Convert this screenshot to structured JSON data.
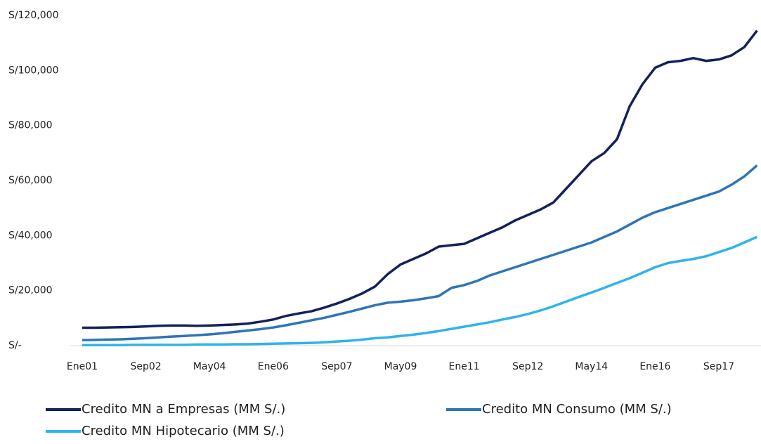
{
  "chart_data": {
    "type": "line",
    "categories": [
      "Ene01",
      null,
      null,
      null,
      null,
      "Sep02",
      null,
      null,
      null,
      null,
      "May04",
      null,
      null,
      null,
      null,
      "Ene06",
      null,
      null,
      null,
      null,
      "Sep07",
      null,
      null,
      null,
      null,
      "May09",
      null,
      null,
      null,
      null,
      "Ene11",
      null,
      null,
      null,
      null,
      "Sep12",
      null,
      null,
      null,
      null,
      "May14",
      null,
      null,
      null,
      null,
      "Ene16",
      null,
      null,
      null,
      null,
      "Sep17",
      null,
      null,
      null
    ],
    "series": [
      {
        "name": "Credito MN a Empresas (MM S/.)",
        "color": "#14215a",
        "values": [
          6500,
          6500,
          6600,
          6700,
          6800,
          7000,
          7200,
          7300,
          7300,
          7200,
          7300,
          7500,
          7700,
          8000,
          8700,
          9500,
          10800,
          11700,
          12500,
          13800,
          15300,
          17000,
          19000,
          21500,
          26000,
          29500,
          31500,
          33500,
          36000,
          36500,
          37000,
          39000,
          41000,
          43000,
          45500,
          47500,
          49500,
          52000,
          57000,
          62000,
          67000,
          70000,
          75000,
          87000,
          95000,
          101000,
          103000,
          103500,
          104500,
          103500,
          104000,
          105500,
          108500,
          114500
        ]
      },
      {
        "name": "Credito MN Consumo (MM S/.)",
        "color": "#2e75b6",
        "values": [
          2000,
          2100,
          2200,
          2300,
          2500,
          2700,
          3000,
          3300,
          3500,
          3800,
          4100,
          4500,
          5000,
          5500,
          6000,
          6600,
          7400,
          8300,
          9200,
          10100,
          11200,
          12300,
          13500,
          14700,
          15600,
          16000,
          16500,
          17200,
          18000,
          21000,
          22000,
          23500,
          25500,
          27000,
          28500,
          30000,
          31500,
          33000,
          34500,
          36000,
          37500,
          39500,
          41500,
          44000,
          46500,
          48500,
          50000,
          51500,
          53000,
          54500,
          56000,
          58500,
          61500,
          65500
        ]
      },
      {
        "name": "Credito MN Hipotecario (MM S/.)",
        "color": "#2fb4e9",
        "values": [
          200,
          200,
          200,
          200,
          300,
          300,
          300,
          300,
          300,
          400,
          400,
          400,
          500,
          500,
          600,
          700,
          800,
          900,
          1000,
          1200,
          1500,
          1800,
          2200,
          2700,
          3000,
          3500,
          4000,
          4600,
          5300,
          6100,
          6900,
          7700,
          8500,
          9500,
          10400,
          11500,
          12800,
          14300,
          16000,
          17700,
          19300,
          21000,
          22800,
          24500,
          26500,
          28500,
          30000,
          30800,
          31500,
          32500,
          34000,
          35500,
          37500,
          39500
        ]
      }
    ],
    "ylim": [
      0,
      120000
    ],
    "yticks": [
      {
        "value": 0,
        "label": "S/-"
      },
      {
        "value": 20000,
        "label": "S/20,000"
      },
      {
        "value": 40000,
        "label": "S/40,000"
      },
      {
        "value": 60000,
        "label": "S/60,000"
      },
      {
        "value": 80000,
        "label": "S/80,000"
      },
      {
        "value": 100000,
        "label": "S/100,000"
      },
      {
        "value": 120000,
        "label": "S/120,000"
      }
    ]
  }
}
